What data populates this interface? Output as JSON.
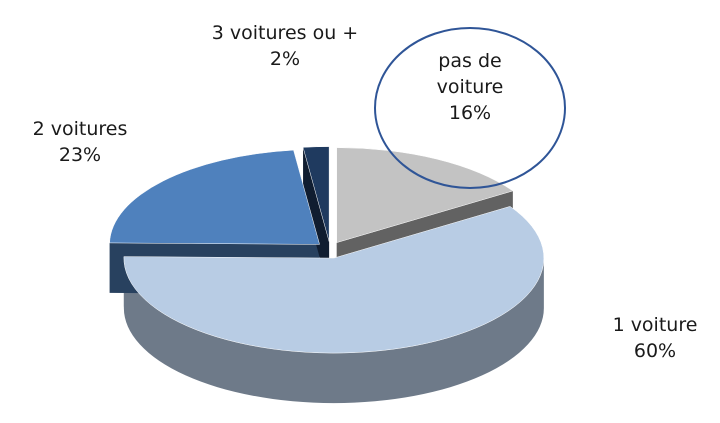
{
  "chart_data": {
    "type": "pie3d",
    "categories": [
      "pas de voiture",
      "1 voiture",
      "2 voitures",
      "3 voitures ou +"
    ],
    "values": [
      16,
      60,
      23,
      2
    ],
    "value_labels": [
      "16%",
      "60%",
      "23%",
      "2%"
    ],
    "colors": [
      "#c3c3c3",
      "#b8cce4",
      "#4f81bd",
      "#1f3a5f"
    ]
  }
}
